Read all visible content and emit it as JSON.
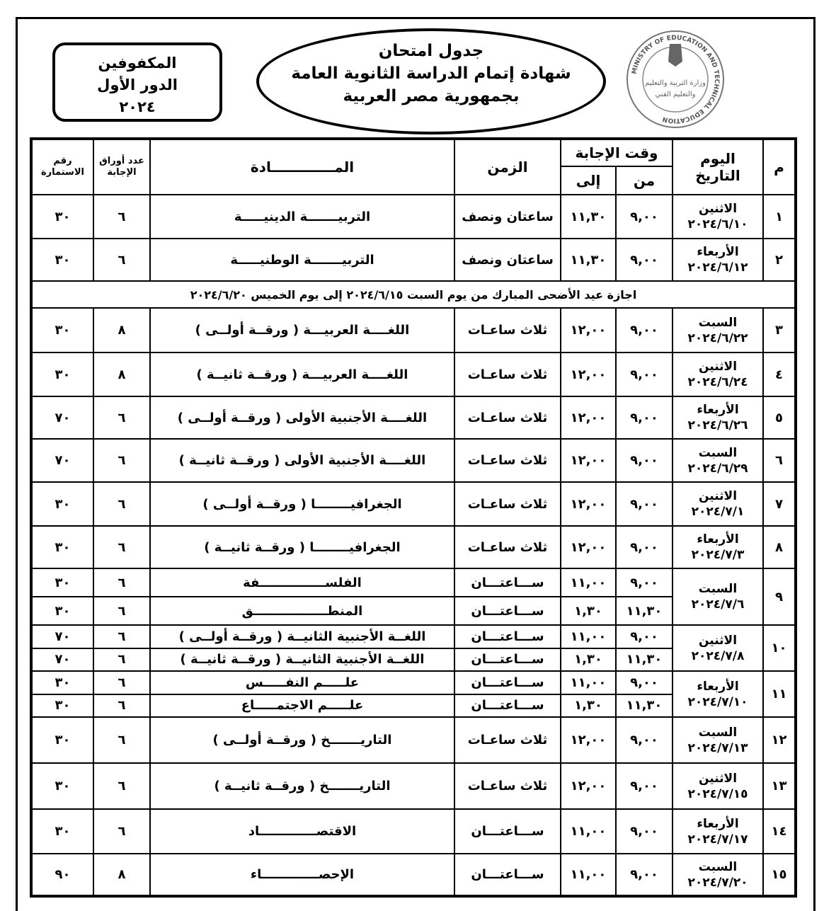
{
  "corner_box": {
    "line1": "المكفوفين",
    "line2": "الدور الأول",
    "line3": "٢٠٢٤"
  },
  "title": {
    "line1": "جدول امتحان",
    "line2": "شهادة إتمام الدراسة الثانوية العامة",
    "line3": "بجمهورية مصر العربية"
  },
  "logo": {
    "ring_text": "MINISTRY OF EDUCATION AND TECHNICAL EDUCATION",
    "inner_line1": "وزارة التربية والتعليم",
    "inner_line2": "والتعليم الفني"
  },
  "headers": {
    "no": "م",
    "day": "اليوم",
    "date": "التاريخ",
    "answer_time": "وقت الإجابة",
    "from": "من",
    "to": "إلى",
    "duration": "الزمن",
    "subject": "المـــــــــــــادة",
    "papers": "عدد أوراق الإجابة",
    "form": "رقم الاستمارة"
  },
  "holiday_note": "اجازة عيد الأضحى المبارك من يوم السبت ٢٠٢٤/٦/١٥ إلى يوم الخميس ٢٠٢٤/٦/٢٠",
  "exams": [
    {
      "no": "١",
      "day": "الاثنين",
      "date": "٢٠٢٤/٦/١٠",
      "sessions": [
        {
          "from": "٩,٠٠",
          "to": "١١,٣٠",
          "duration": "ساعتان ونصف",
          "subject": "التربيـــــــة الدينيـــــة",
          "papers": "٦",
          "form": "٣٠"
        }
      ]
    },
    {
      "no": "٢",
      "day": "الأربعاء",
      "date": "٢٠٢٤/٦/١٢",
      "sessions": [
        {
          "from": "٩,٠٠",
          "to": "١١,٣٠",
          "duration": "ساعتان ونصف",
          "subject": "التربيـــــــة الوطنيـــــة",
          "papers": "٦",
          "form": "٣٠"
        }
      ]
    },
    {
      "no": "٣",
      "day": "السبت",
      "date": "٢٠٢٤/٦/٢٢",
      "sessions": [
        {
          "from": "٩,٠٠",
          "to": "١٢,٠٠",
          "duration": "ثلاث ساعـات",
          "subject": "اللغــــة العربيـــة  ( ورقــة أولــى )",
          "papers": "٨",
          "form": "٣٠"
        }
      ]
    },
    {
      "no": "٤",
      "day": "الاثنين",
      "date": "٢٠٢٤/٦/٢٤",
      "sessions": [
        {
          "from": "٩,٠٠",
          "to": "١٢,٠٠",
          "duration": "ثلاث ساعـات",
          "subject": "اللغــــة العربيـــة  ( ورقــة ثانيــة )",
          "papers": "٨",
          "form": "٣٠"
        }
      ]
    },
    {
      "no": "٥",
      "day": "الأربعاء",
      "date": "٢٠٢٤/٦/٢٦",
      "sessions": [
        {
          "from": "٩,٠٠",
          "to": "١٢,٠٠",
          "duration": "ثلاث ساعـات",
          "subject": "اللغــــة الأجنبية الأولى ( ورقــة أولــى )",
          "papers": "٦",
          "form": "٧٠"
        }
      ]
    },
    {
      "no": "٦",
      "day": "السبت",
      "date": "٢٠٢٤/٦/٢٩",
      "sessions": [
        {
          "from": "٩,٠٠",
          "to": "١٢,٠٠",
          "duration": "ثلاث ساعـات",
          "subject": "اللغــــة الأجنبية الأولى ( ورقــة ثانيــة )",
          "papers": "٦",
          "form": "٧٠"
        }
      ]
    },
    {
      "no": "٧",
      "day": "الاثنين",
      "date": "٢٠٢٤/٧/١",
      "sessions": [
        {
          "from": "٩,٠٠",
          "to": "١٢,٠٠",
          "duration": "ثلاث ساعـات",
          "subject": "الجغرافيــــــــا ( ورقــة أولــى )",
          "papers": "٦",
          "form": "٣٠"
        }
      ]
    },
    {
      "no": "٨",
      "day": "الأربعاء",
      "date": "٢٠٢٤/٧/٣",
      "sessions": [
        {
          "from": "٩,٠٠",
          "to": "١٢,٠٠",
          "duration": "ثلاث ساعـات",
          "subject": "الجغرافيــــــــا ( ورقــة ثانيــة )",
          "papers": "٦",
          "form": "٣٠"
        }
      ]
    },
    {
      "no": "٩",
      "day": "السبت",
      "date": "٢٠٢٤/٧/٦",
      "sessions": [
        {
          "from": "٩,٠٠",
          "to": "١١,٠٠",
          "duration": "ســـاعتـــان",
          "subject": "الفلســـــــــــــــفة",
          "papers": "٦",
          "form": "٣٠"
        },
        {
          "from": "١١,٣٠",
          "to": "١,٣٠",
          "duration": "ســـاعتـــان",
          "subject": "المنطـــــــــــــــــق",
          "papers": "٦",
          "form": "٣٠"
        }
      ]
    },
    {
      "no": "١٠",
      "day": "الاثنين",
      "date": "٢٠٢٤/٧/٨",
      "sessions": [
        {
          "from": "٩,٠٠",
          "to": "١١,٠٠",
          "duration": "ســـاعتـــان",
          "subject": "اللغــة الأجنبية الثانيــة ( ورقــة أولــى )",
          "papers": "٦",
          "form": "٧٠"
        },
        {
          "from": "١١,٣٠",
          "to": "١,٣٠",
          "duration": "ســـاعتـــان",
          "subject": "اللغــة الأجنبية الثانيــة ( ورقــة ثانيــة )",
          "papers": "٦",
          "form": "٧٠"
        }
      ]
    },
    {
      "no": "١١",
      "day": "الأربعاء",
      "date": "٢٠٢٤/٧/١٠",
      "sessions": [
        {
          "from": "٩,٠٠",
          "to": "١١,٠٠",
          "duration": "ســـاعتـــان",
          "subject": "علـــــم النفـــــس",
          "papers": "٦",
          "form": "٣٠"
        },
        {
          "from": "١١,٣٠",
          "to": "١,٣٠",
          "duration": "ســـاعتـــان",
          "subject": "علـــــم الاجتمـــــاع",
          "papers": "٦",
          "form": "٣٠"
        }
      ]
    },
    {
      "no": "١٢",
      "day": "السبت",
      "date": "٢٠٢٤/٧/١٣",
      "sessions": [
        {
          "from": "٩,٠٠",
          "to": "١٢,٠٠",
          "duration": "ثلاث ساعـات",
          "subject": "التاريـــــــخ ( ورقــة أولــى )",
          "papers": "٦",
          "form": "٣٠"
        }
      ]
    },
    {
      "no": "١٣",
      "day": "الاثنين",
      "date": "٢٠٢٤/٧/١٥",
      "sessions": [
        {
          "from": "٩,٠٠",
          "to": "١٢,٠٠",
          "duration": "ثلاث ساعـات",
          "subject": "التاريـــــــخ ( ورقــة ثانيــة )",
          "papers": "٦",
          "form": "٣٠"
        }
      ]
    },
    {
      "no": "١٤",
      "day": "الأربعاء",
      "date": "٢٠٢٤/٧/١٧",
      "sessions": [
        {
          "from": "٩,٠٠",
          "to": "١١,٠٠",
          "duration": "ســـاعتـــان",
          "subject": "الاقتصـــــــــــــاد",
          "papers": "٦",
          "form": "٣٠"
        }
      ]
    },
    {
      "no": "١٥",
      "day": "السبت",
      "date": "٢٠٢٤/٧/٢٠",
      "sessions": [
        {
          "from": "٩,٠٠",
          "to": "١١,٠٠",
          "duration": "ســـاعتـــان",
          "subject": "الإحصـــــــــــــاء",
          "papers": "٨",
          "form": "٩٠"
        }
      ]
    }
  ]
}
